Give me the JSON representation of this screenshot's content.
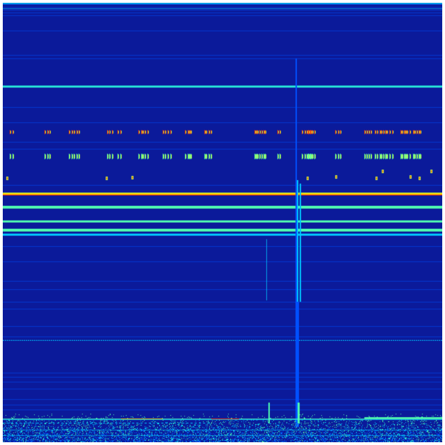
{
  "image": {
    "kind": "spectrogram-heatmap",
    "colormap": [
      "#00007f",
      "#0a1fa8",
      "#0050ff",
      "#00c8ff",
      "#50ffb0",
      "#c8ff40",
      "#ffd000",
      "#ff3000",
      "#a00000"
    ],
    "background_color": "#0b1a9a"
  }
}
